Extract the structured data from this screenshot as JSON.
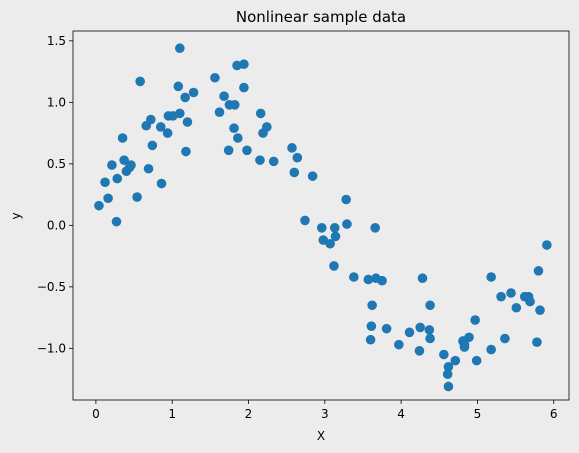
{
  "chart_data": {
    "type": "scatter",
    "title": "Nonlinear sample data",
    "xlabel": "X",
    "ylabel": "y",
    "xlim": [
      -0.3,
      6.2
    ],
    "ylim": [
      -1.42,
      1.58
    ],
    "xticks": [
      0,
      1,
      2,
      3,
      4,
      5,
      6
    ],
    "xtick_labels": [
      "0",
      "1",
      "2",
      "3",
      "4",
      "5",
      "6"
    ],
    "yticks": [
      -1.0,
      -0.5,
      0.0,
      0.5,
      1.0,
      1.5
    ],
    "ytick_labels": [
      "−1.0",
      "−0.5",
      "0.0",
      "0.5",
      "1.0",
      "1.5"
    ],
    "grid": false,
    "legend": "none",
    "point_color": "#1f77b4",
    "background": "#ececec",
    "points": [
      [
        0.04,
        0.16
      ],
      [
        0.12,
        0.35
      ],
      [
        0.16,
        0.22
      ],
      [
        0.21,
        0.49
      ],
      [
        0.27,
        0.03
      ],
      [
        0.28,
        0.38
      ],
      [
        0.35,
        0.71
      ],
      [
        0.37,
        0.53
      ],
      [
        0.4,
        0.44
      ],
      [
        0.44,
        0.47
      ],
      [
        0.46,
        0.49
      ],
      [
        0.54,
        0.23
      ],
      [
        0.58,
        1.17
      ],
      [
        0.66,
        0.81
      ],
      [
        0.69,
        0.46
      ],
      [
        0.72,
        0.86
      ],
      [
        0.74,
        0.65
      ],
      [
        0.85,
        0.8
      ],
      [
        0.86,
        0.34
      ],
      [
        0.94,
        0.75
      ],
      [
        0.95,
        0.89
      ],
      [
        1.01,
        0.89
      ],
      [
        1.08,
        1.13
      ],
      [
        1.1,
        1.44
      ],
      [
        1.1,
        0.91
      ],
      [
        1.17,
        1.04
      ],
      [
        1.18,
        0.6
      ],
      [
        1.2,
        0.84
      ],
      [
        1.28,
        1.08
      ],
      [
        1.56,
        1.2
      ],
      [
        1.62,
        0.92
      ],
      [
        1.68,
        1.05
      ],
      [
        1.74,
        0.61
      ],
      [
        1.75,
        0.98
      ],
      [
        1.81,
        0.79
      ],
      [
        1.82,
        0.98
      ],
      [
        1.85,
        1.3
      ],
      [
        1.86,
        0.71
      ],
      [
        1.94,
        1.12
      ],
      [
        1.94,
        1.31
      ],
      [
        1.98,
        0.61
      ],
      [
        2.15,
        0.53
      ],
      [
        2.16,
        0.91
      ],
      [
        2.19,
        0.75
      ],
      [
        2.24,
        0.8
      ],
      [
        2.33,
        0.52
      ],
      [
        2.57,
        0.63
      ],
      [
        2.6,
        0.43
      ],
      [
        2.64,
        0.55
      ],
      [
        2.74,
        0.04
      ],
      [
        2.84,
        0.4
      ],
      [
        2.96,
        -0.02
      ],
      [
        2.98,
        -0.12
      ],
      [
        3.07,
        -0.15
      ],
      [
        3.12,
        -0.33
      ],
      [
        3.13,
        -0.02
      ],
      [
        3.14,
        -0.09
      ],
      [
        3.28,
        0.21
      ],
      [
        3.29,
        0.01
      ],
      [
        3.38,
        -0.42
      ],
      [
        3.57,
        -0.44
      ],
      [
        3.6,
        -0.93
      ],
      [
        3.61,
        -0.82
      ],
      [
        3.62,
        -0.65
      ],
      [
        3.66,
        -0.02
      ],
      [
        3.67,
        -0.43
      ],
      [
        3.75,
        -0.45
      ],
      [
        3.81,
        -0.84
      ],
      [
        3.97,
        -0.97
      ],
      [
        4.11,
        -0.87
      ],
      [
        4.24,
        -1.02
      ],
      [
        4.25,
        -0.83
      ],
      [
        4.28,
        -0.43
      ],
      [
        4.37,
        -0.85
      ],
      [
        4.38,
        -0.92
      ],
      [
        4.38,
        -0.65
      ],
      [
        4.56,
        -1.05
      ],
      [
        4.61,
        -1.21
      ],
      [
        4.62,
        -1.31
      ],
      [
        4.62,
        -1.15
      ],
      [
        4.71,
        -1.1
      ],
      [
        4.81,
        -0.94
      ],
      [
        4.83,
        -0.99
      ],
      [
        4.83,
        -0.97
      ],
      [
        4.89,
        -0.91
      ],
      [
        4.97,
        -0.77
      ],
      [
        4.99,
        -1.1
      ],
      [
        5.18,
        -1.01
      ],
      [
        5.18,
        -0.42
      ],
      [
        5.31,
        -0.58
      ],
      [
        5.36,
        -0.92
      ],
      [
        5.44,
        -0.55
      ],
      [
        5.51,
        -0.67
      ],
      [
        5.62,
        -0.58
      ],
      [
        5.67,
        -0.58
      ],
      [
        5.69,
        -0.62
      ],
      [
        5.78,
        -0.95
      ],
      [
        5.8,
        -0.37
      ],
      [
        5.82,
        -0.69
      ],
      [
        5.91,
        -0.16
      ]
    ]
  }
}
